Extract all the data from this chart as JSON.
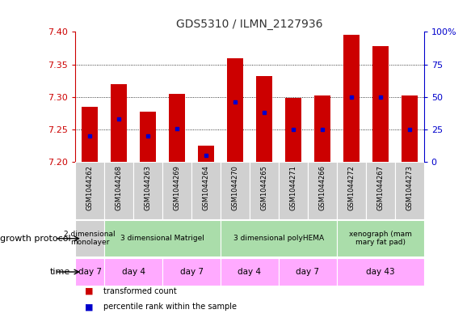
{
  "title": "GDS5310 / ILMN_2127936",
  "samples": [
    "GSM1044262",
    "GSM1044268",
    "GSM1044263",
    "GSM1044269",
    "GSM1044264",
    "GSM1044270",
    "GSM1044265",
    "GSM1044271",
    "GSM1044266",
    "GSM1044272",
    "GSM1044267",
    "GSM1044273"
  ],
  "transformed_counts": [
    7.285,
    7.32,
    7.277,
    7.305,
    7.225,
    7.36,
    7.332,
    7.298,
    7.302,
    7.395,
    7.378,
    7.302
  ],
  "percentile_ranks": [
    20,
    33,
    20,
    26,
    5,
    46,
    38,
    25,
    25,
    50,
    50,
    25
  ],
  "y_min": 7.2,
  "y_max": 7.4,
  "bar_color": "#CC0000",
  "blue_color": "#0000CC",
  "growth_protocol_groups": [
    {
      "label": "2 dimensional\nmonolayer",
      "start": 0,
      "end": 1,
      "color": "#d0d0d0"
    },
    {
      "label": "3 dimensional Matrigel",
      "start": 1,
      "end": 5,
      "color": "#aaddaa"
    },
    {
      "label": "3 dimensional polyHEMA",
      "start": 5,
      "end": 9,
      "color": "#aaddaa"
    },
    {
      "label": "xenograph (mam\nmary fat pad)",
      "start": 9,
      "end": 12,
      "color": "#aaddaa"
    }
  ],
  "time_groups": [
    {
      "label": "day 7",
      "start": 0,
      "end": 1
    },
    {
      "label": "day 4",
      "start": 1,
      "end": 3
    },
    {
      "label": "day 7",
      "start": 3,
      "end": 5
    },
    {
      "label": "day 4",
      "start": 5,
      "end": 7
    },
    {
      "label": "day 7",
      "start": 7,
      "end": 9
    },
    {
      "label": "day 43",
      "start": 9,
      "end": 12
    }
  ],
  "yticks_left": [
    7.2,
    7.25,
    7.3,
    7.35,
    7.4
  ],
  "yticks_right": [
    0,
    25,
    50,
    75,
    100
  ],
  "left_label_color": "#CC0000",
  "right_label_color": "#0000CC",
  "growth_protocol_label": "growth protocol",
  "time_label": "time",
  "legend_items": [
    {
      "color": "#CC0000",
      "label": "transformed count"
    },
    {
      "color": "#0000CC",
      "label": "percentile rank within the sample"
    }
  ],
  "protocol_gray": "#d0d0d0",
  "protocol_green": "#aaddaa",
  "time_pink": "#ffaaff",
  "bar_width": 0.55
}
